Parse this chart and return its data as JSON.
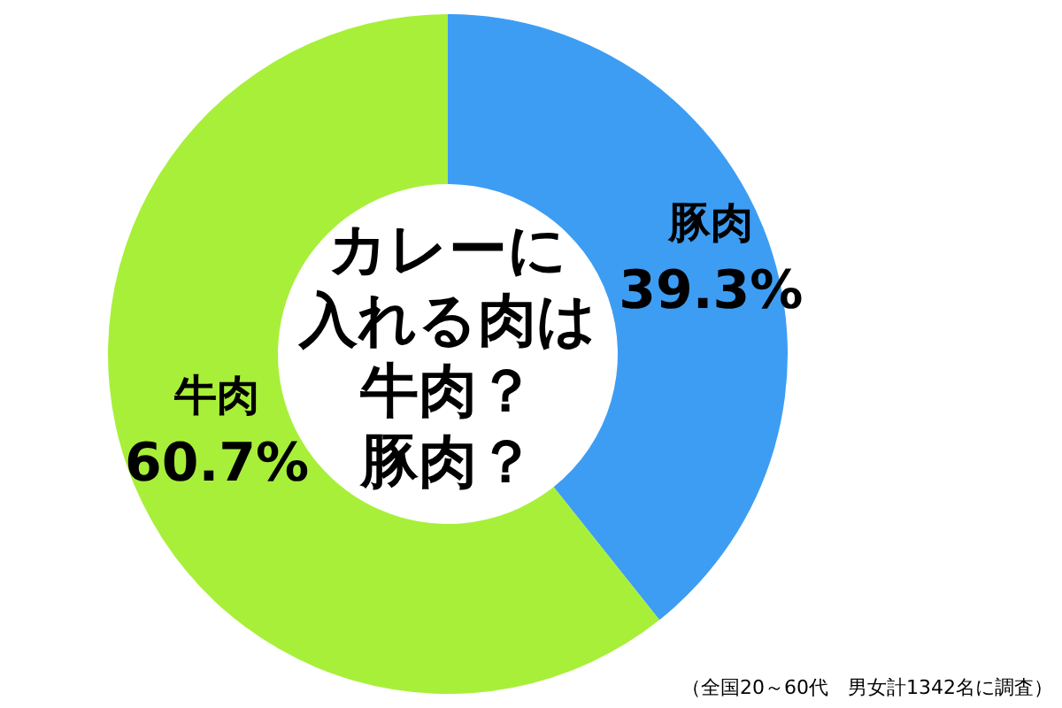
{
  "chart_data": {
    "type": "donut",
    "title": "カレーに入れる肉は牛肉？豚肉？",
    "categories": [
      "豚肉",
      "牛肉"
    ],
    "values": [
      39.3,
      60.7
    ],
    "colors": [
      "#3d9df3",
      "#a8ef3a"
    ],
    "value_labels": [
      "39.3%",
      "60.7%"
    ],
    "annotations": [
      "（全国20～60代　男女計1342名に調査）"
    ]
  }
}
